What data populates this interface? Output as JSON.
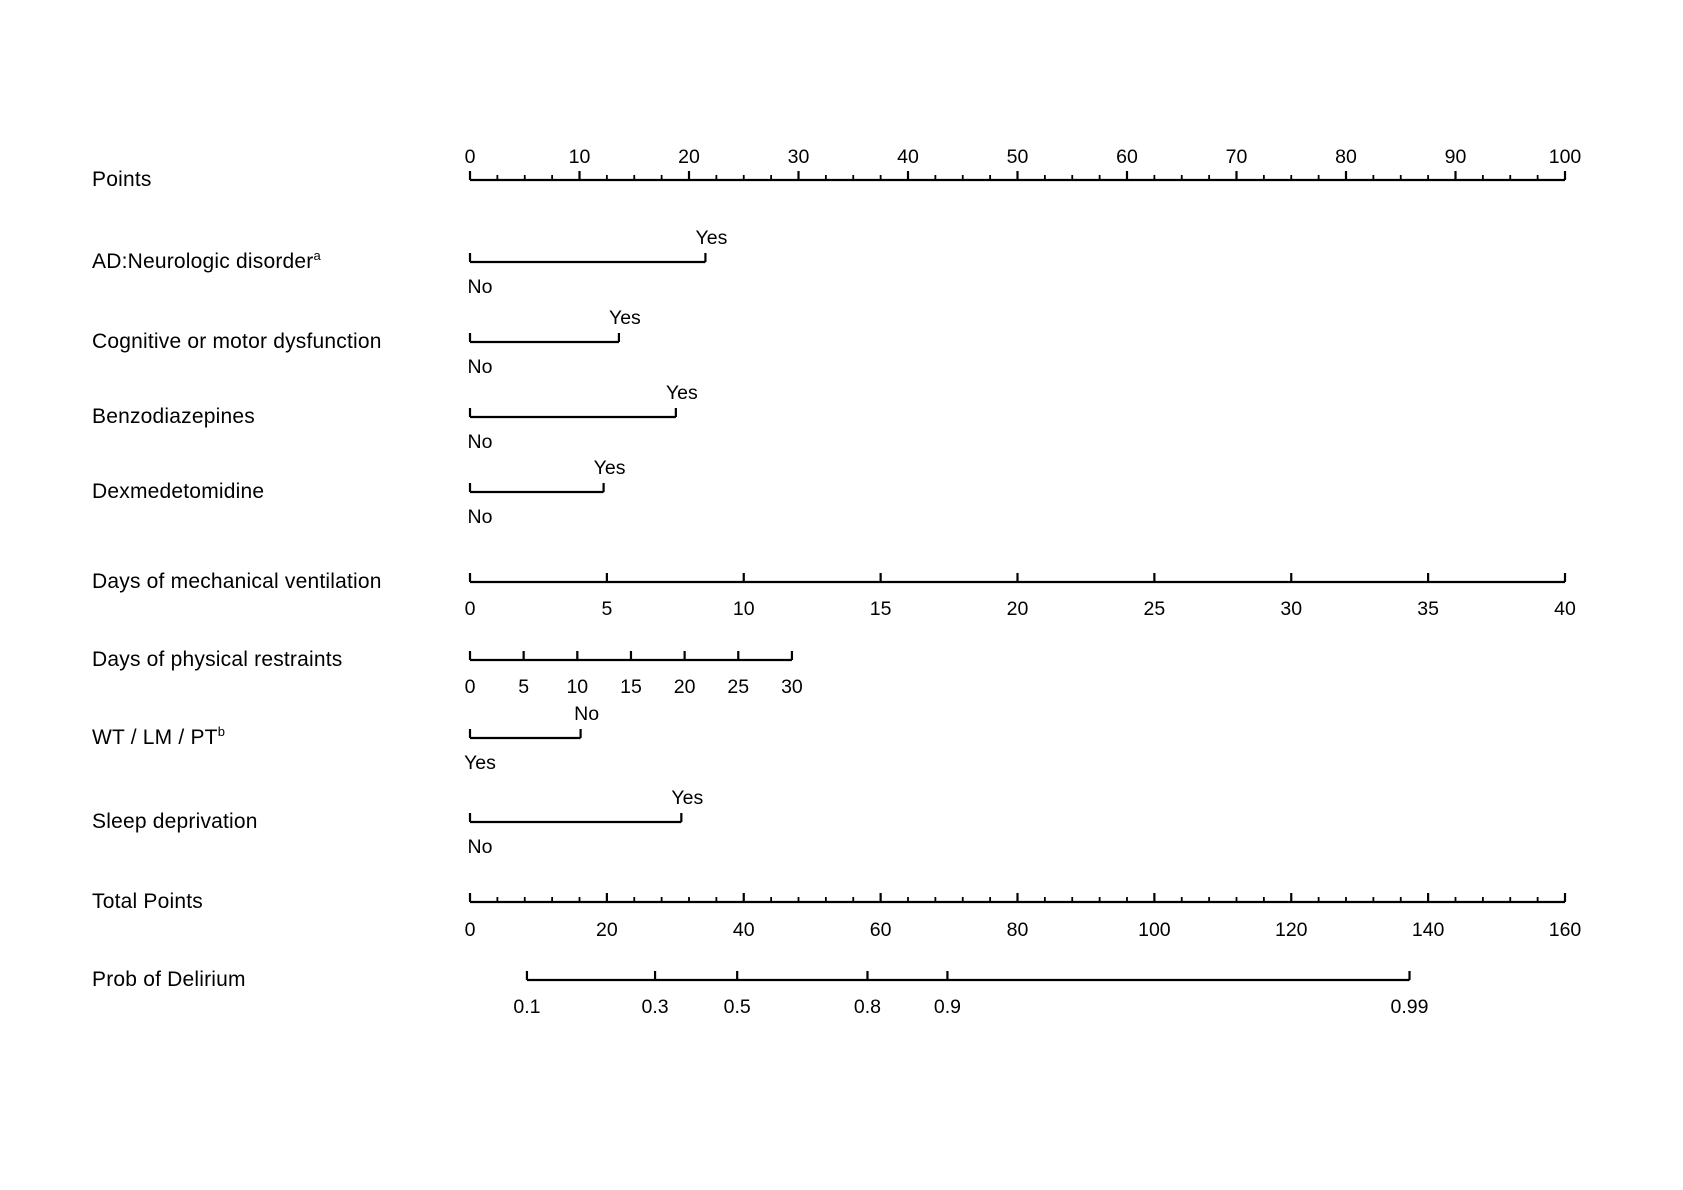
{
  "chart_data": {
    "type": "nomogram",
    "title": "",
    "background": "#ffffff",
    "ink_color": "#000000",
    "points_scale": {
      "min": 0,
      "max": 100,
      "major_step": 10,
      "minor_step": 2.5
    },
    "rows": [
      {
        "id": "points",
        "row_type": "points_axis",
        "label": "Points",
        "min": 0,
        "max": 100,
        "major_step": 10,
        "minor_step": 2.5,
        "labels_position": "above"
      },
      {
        "id": "ad-neurologic-disorder",
        "row_type": "binary",
        "label": "AD:Neurologic disorder",
        "label_sup": "a",
        "upper_label": "Yes",
        "upper_points": 21.5,
        "lower_label": "No",
        "lower_points": 0
      },
      {
        "id": "cognitive-motor-dysfunction",
        "row_type": "binary",
        "label": "Cognitive or motor dysfunction",
        "upper_label": "Yes",
        "upper_points": 13.6,
        "lower_label": "No",
        "lower_points": 0
      },
      {
        "id": "benzodiazepines",
        "row_type": "binary",
        "label": "Benzodiazepines",
        "upper_label": "Yes",
        "upper_points": 18.8,
        "lower_label": "No",
        "lower_points": 0
      },
      {
        "id": "dexmedetomidine",
        "row_type": "binary",
        "label": "Dexmedetomidine",
        "upper_label": "Yes",
        "upper_points": 12.2,
        "lower_label": "No",
        "lower_points": 0
      },
      {
        "id": "days-mechanical-ventilation",
        "row_type": "numeric_axis",
        "label": "Days of mechanical ventilation",
        "min": 0,
        "max": 40,
        "step": 5,
        "max_points": 100
      },
      {
        "id": "days-physical-restraints",
        "row_type": "numeric_axis",
        "label": "Days of physical restraints",
        "min": 0,
        "max": 30,
        "step": 5,
        "max_points": 29.4
      },
      {
        "id": "wt-lm-pt",
        "row_type": "binary",
        "label": "WT / LM / PT",
        "label_sup": "b",
        "upper_label": "No",
        "upper_points": 10.1,
        "lower_label": "Yes",
        "lower_points": 0
      },
      {
        "id": "sleep-deprivation",
        "row_type": "binary",
        "label": "Sleep deprivation",
        "upper_label": "Yes",
        "upper_points": 19.3,
        "lower_label": "No",
        "lower_points": 0
      },
      {
        "id": "total-points",
        "row_type": "total_axis",
        "label": "Total Points",
        "min": 0,
        "max": 160,
        "major_step": 20,
        "minor_step": 4
      },
      {
        "id": "prob-delirium",
        "row_type": "prob_axis",
        "label": "Prob of Delirium",
        "ticks": [
          {
            "label": "0.1",
            "points": 5.2
          },
          {
            "label": "0.3",
            "points": 16.9
          },
          {
            "label": "0.5",
            "points": 24.4
          },
          {
            "label": "0.8",
            "points": 36.3
          },
          {
            "label": "0.9",
            "points": 43.6
          },
          {
            "label": "0.99",
            "points": 85.8
          }
        ]
      }
    ]
  }
}
